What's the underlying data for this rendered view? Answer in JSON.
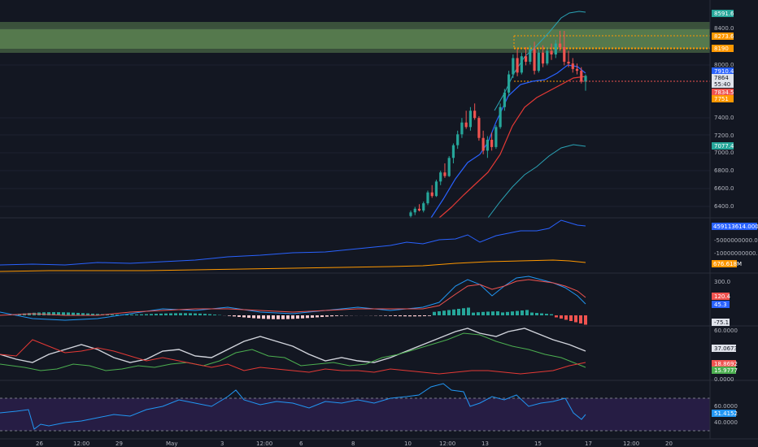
{
  "colors": {
    "background": "#131722",
    "grid": "#1e2230",
    "axis_text": "#b2b5be",
    "separator": "#2a2e39",
    "candle_up": "#26a69a",
    "candle_down": "#ef5350",
    "ema_fast": "#2962ff",
    "ema_slow": "#e53935",
    "bb": "#2aa3b5",
    "zone": "#6b9a5c",
    "orange": "#ff9800",
    "white_line": "#d1d4dc",
    "green_line": "#4caf50",
    "rsi_fill": "#2a1f4a",
    "rsi_line": "#2196f3"
  },
  "price_axis": {
    "ticks": [
      "8400.0",
      "8000.0",
      "7400.0",
      "7200.0",
      "7000.0",
      "6800.0",
      "6600.0",
      "6400.0"
    ],
    "badges": [
      {
        "label": "8591.6",
        "color": "#26a69a",
        "text_color": "#ffffff"
      },
      {
        "label": "8273.6",
        "color": "#ff9800",
        "text_color": "#ffffff"
      },
      {
        "label": "8190",
        "color": "#ff9800",
        "text_color": "#ffffff"
      },
      {
        "label": "7910.4",
        "color": "#2962ff",
        "text_color": "#ffffff"
      },
      {
        "label": "7864",
        "color": "#e0e3eb",
        "text_color": "#131722"
      },
      {
        "label": "55:40",
        "color": "#e0e3eb",
        "text_color": "#131722"
      },
      {
        "label": "7834.5",
        "color": "#ef5350",
        "text_color": "#ffffff"
      },
      {
        "label": "7751",
        "color": "#ff9800",
        "text_color": "#ffffff"
      },
      {
        "label": "7077.4",
        "color": "#26a69a",
        "text_color": "#ffffff"
      }
    ]
  },
  "volume_axis": {
    "ticks": [
      "-5000000000.0000",
      "-10000000000.0000"
    ],
    "badges": [
      {
        "label": "459113614.0000",
        "color": "#2962ff",
        "text_color": "#ffffff"
      },
      {
        "label": "676.618M",
        "color": "#ff9800",
        "text_color": "#ffffff"
      }
    ]
  },
  "macd_axis": {
    "ticks": [
      "300.0"
    ],
    "badges": [
      {
        "label": "120.4",
        "color": "#ef5350",
        "text_color": "#ffffff"
      },
      {
        "label": "45.3",
        "color": "#2962ff",
        "text_color": "#ffffff"
      },
      {
        "label": "-75.1",
        "color": "#e0e3eb",
        "text_color": "#131722"
      }
    ]
  },
  "dmi_axis": {
    "ticks": [
      "60.0000",
      "0.0000"
    ],
    "badges": [
      {
        "label": "37.0673",
        "color": "#e0e3eb",
        "text_color": "#131722"
      },
      {
        "label": "18.8692",
        "color": "#ef5350",
        "text_color": "#ffffff"
      },
      {
        "label": "15.9777",
        "color": "#4caf50",
        "text_color": "#ffffff"
      }
    ]
  },
  "rsi_axis": {
    "ticks": [
      "60.0000",
      "40.0000"
    ],
    "badges": [
      {
        "label": "51.4152",
        "color": "#2196f3",
        "text_color": "#ffffff"
      }
    ]
  },
  "time_axis": {
    "labels": [
      "26",
      "12:00",
      "29",
      "May",
      "3",
      "12:00",
      "6",
      "8",
      "10",
      "12:00",
      "13",
      "15",
      "17",
      "12:00",
      "20"
    ]
  },
  "chart_data": {
    "type": "candlestick",
    "title": "",
    "panes": [
      "price",
      "volume-oscillator",
      "macd",
      "dmi",
      "rsi"
    ],
    "price_range": [
      6300,
      8700
    ],
    "zone": [
      8200,
      8400
    ],
    "candles": [
      {
        "o": 6320,
        "h": 6380,
        "l": 6300,
        "c": 6360
      },
      {
        "o": 6360,
        "h": 6420,
        "l": 6330,
        "c": 6400
      },
      {
        "o": 6400,
        "h": 6450,
        "l": 6370,
        "c": 6380
      },
      {
        "o": 6380,
        "h": 6480,
        "l": 6360,
        "c": 6460
      },
      {
        "o": 6460,
        "h": 6600,
        "l": 6440,
        "c": 6580
      },
      {
        "o": 6580,
        "h": 6660,
        "l": 6520,
        "c": 6540
      },
      {
        "o": 6540,
        "h": 6720,
        "l": 6530,
        "c": 6700
      },
      {
        "o": 6700,
        "h": 6820,
        "l": 6660,
        "c": 6800
      },
      {
        "o": 6800,
        "h": 6900,
        "l": 6740,
        "c": 6760
      },
      {
        "o": 6760,
        "h": 6980,
        "l": 6750,
        "c": 6960
      },
      {
        "o": 6960,
        "h": 7120,
        "l": 6900,
        "c": 7100
      },
      {
        "o": 7100,
        "h": 7260,
        "l": 7060,
        "c": 7220
      },
      {
        "o": 7220,
        "h": 7400,
        "l": 7180,
        "c": 7350
      },
      {
        "o": 7350,
        "h": 7480,
        "l": 7280,
        "c": 7300
      },
      {
        "o": 7300,
        "h": 7520,
        "l": 7260,
        "c": 7480
      },
      {
        "o": 7480,
        "h": 7560,
        "l": 7380,
        "c": 7400
      },
      {
        "o": 7400,
        "h": 7420,
        "l": 7150,
        "c": 7180
      },
      {
        "o": 7180,
        "h": 7260,
        "l": 7000,
        "c": 7040
      },
      {
        "o": 7040,
        "h": 7200,
        "l": 6960,
        "c": 7160
      },
      {
        "o": 7160,
        "h": 7240,
        "l": 7040,
        "c": 7080
      },
      {
        "o": 7080,
        "h": 7320,
        "l": 7060,
        "c": 7300
      },
      {
        "o": 7300,
        "h": 7560,
        "l": 7280,
        "c": 7520
      },
      {
        "o": 7520,
        "h": 7720,
        "l": 7480,
        "c": 7680
      },
      {
        "o": 7680,
        "h": 7920,
        "l": 7640,
        "c": 7880
      },
      {
        "o": 7880,
        "h": 8100,
        "l": 7840,
        "c": 8060
      },
      {
        "o": 8060,
        "h": 8160,
        "l": 7860,
        "c": 7900
      },
      {
        "o": 7900,
        "h": 8120,
        "l": 7880,
        "c": 8080
      },
      {
        "o": 8080,
        "h": 8180,
        "l": 7980,
        "c": 8020
      },
      {
        "o": 8020,
        "h": 8200,
        "l": 7990,
        "c": 8160
      },
      {
        "o": 8160,
        "h": 8240,
        "l": 7880,
        "c": 7920
      },
      {
        "o": 7920,
        "h": 8160,
        "l": 7900,
        "c": 8120
      },
      {
        "o": 8120,
        "h": 8200,
        "l": 7960,
        "c": 8000
      },
      {
        "o": 8000,
        "h": 8180,
        "l": 7980,
        "c": 8140
      },
      {
        "o": 8140,
        "h": 8220,
        "l": 8040,
        "c": 8100
      },
      {
        "o": 8100,
        "h": 8260,
        "l": 8060,
        "c": 8220
      },
      {
        "o": 8220,
        "h": 8360,
        "l": 8140,
        "c": 8180
      },
      {
        "o": 8180,
        "h": 8360,
        "l": 7980,
        "c": 8020
      },
      {
        "o": 8020,
        "h": 8140,
        "l": 7960,
        "c": 8000
      },
      {
        "o": 8000,
        "h": 8060,
        "l": 7900,
        "c": 7940
      },
      {
        "o": 7940,
        "h": 8000,
        "l": 7880,
        "c": 7920
      },
      {
        "o": 7920,
        "h": 7960,
        "l": 7780,
        "c": 7800
      },
      {
        "o": 7800,
        "h": 7880,
        "l": 7700,
        "c": 7864
      }
    ]
  }
}
